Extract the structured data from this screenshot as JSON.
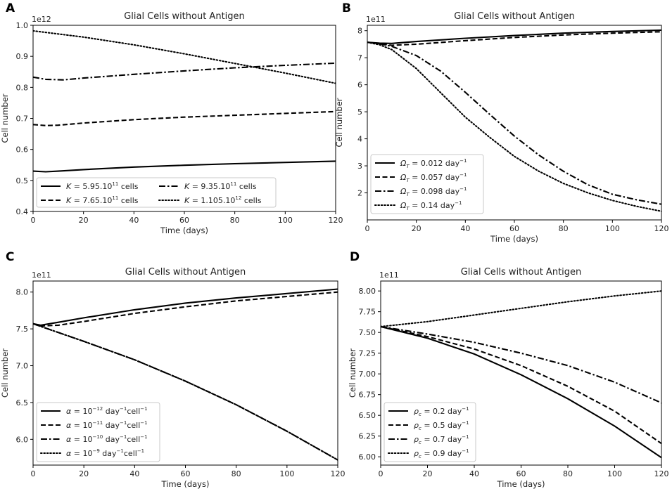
{
  "chart_data": [
    {
      "panel": "A",
      "type": "line",
      "title": "Glial Cells without Antigen",
      "xlabel": "Time (days)",
      "ylabel": "Cell number",
      "scale_label": "1e12",
      "xlim": [
        0,
        120
      ],
      "ylim": [
        0.4,
        1.0
      ],
      "xticks": [
        0,
        20,
        40,
        60,
        80,
        100,
        120
      ],
      "yticks": [
        0.4,
        0.5,
        0.6,
        0.7,
        0.8,
        0.9,
        1.0
      ],
      "ytick_labels": [
        "0.4",
        "0.5",
        "0.6",
        "0.7",
        "0.8",
        "0.9",
        "1.0"
      ],
      "legend_position": "bottom",
      "legend_columns": 2,
      "series": [
        {
          "name": "K = 5.95.10^11 cells",
          "legend": {
            "sym": "K",
            "eq": " = 5.95.10",
            "sup": "11",
            "tail": " cells"
          },
          "style": "solid",
          "x": [
            0,
            5,
            10,
            20,
            40,
            60,
            80,
            100,
            120
          ],
          "y": [
            0.53,
            0.528,
            0.53,
            0.535,
            0.543,
            0.549,
            0.554,
            0.558,
            0.562
          ]
        },
        {
          "name": "K = 7.65.10^11 cells",
          "legend": {
            "sym": "K",
            "eq": " = 7.65.10",
            "sup": "11",
            "tail": " cells"
          },
          "style": "dashed",
          "x": [
            0,
            5,
            10,
            20,
            40,
            60,
            80,
            100,
            120
          ],
          "y": [
            0.68,
            0.677,
            0.678,
            0.685,
            0.696,
            0.704,
            0.71,
            0.716,
            0.722
          ]
        },
        {
          "name": "K = 9.35.10^11 cells",
          "legend": {
            "sym": "K",
            "eq": " = 9.35.10",
            "sup": "11",
            "tail": " cells"
          },
          "style": "dashdot",
          "x": [
            0,
            5,
            12,
            20,
            40,
            60,
            80,
            100,
            120
          ],
          "y": [
            0.833,
            0.826,
            0.824,
            0.83,
            0.842,
            0.853,
            0.863,
            0.871,
            0.878
          ]
        },
        {
          "name": "K = 1.105.10^12 cells",
          "legend": {
            "sym": "K",
            "eq": " = 1.105.10",
            "sup": "12",
            "tail": " cells"
          },
          "style": "dotted",
          "x": [
            0,
            20,
            40,
            60,
            80,
            100,
            120
          ],
          "y": [
            0.982,
            0.962,
            0.937,
            0.908,
            0.877,
            0.846,
            0.813
          ]
        }
      ]
    },
    {
      "panel": "B",
      "type": "line",
      "title": "Glial Cells without Antigen",
      "xlabel": "Time (days)",
      "ylabel": "Cell number",
      "scale_label": "1e11",
      "xlim": [
        0,
        120
      ],
      "ylim": [
        1.0,
        8.2
      ],
      "xticks": [
        0,
        20,
        40,
        60,
        80,
        100,
        120
      ],
      "yticks": [
        2,
        3,
        4,
        5,
        6,
        7,
        8
      ],
      "ytick_labels": [
        "2",
        "3",
        "4",
        "5",
        "6",
        "7",
        "8"
      ],
      "legend_position": "lower-left",
      "legend_columns": 1,
      "series": [
        {
          "name": "Ω_T = 0.012 day^-1",
          "legend": {
            "sym": "Ω",
            "sub": "T",
            "eq": " = 0.012 day",
            "sup": "−1"
          },
          "style": "solid",
          "x": [
            0,
            5,
            10,
            20,
            40,
            60,
            80,
            100,
            120
          ],
          "y": [
            7.57,
            7.54,
            7.53,
            7.6,
            7.72,
            7.82,
            7.91,
            7.97,
            8.02
          ]
        },
        {
          "name": "Ω_T = 0.057 day^-1",
          "legend": {
            "sym": "Ω",
            "sub": "T",
            "eq": " = 0.057 day",
            "sup": "−1"
          },
          "style": "dashed",
          "x": [
            0,
            5,
            10,
            20,
            40,
            60,
            80,
            100,
            120
          ],
          "y": [
            7.57,
            7.52,
            7.46,
            7.5,
            7.63,
            7.75,
            7.84,
            7.91,
            7.96
          ]
        },
        {
          "name": "Ω_T = 0.098 day^-1",
          "legend": {
            "sym": "Ω",
            "sub": "T",
            "eq": " = 0.098 day",
            "sup": "−1"
          },
          "style": "dashdot",
          "x": [
            0,
            5,
            10,
            20,
            30,
            40,
            50,
            60,
            70,
            80,
            90,
            100,
            110,
            120
          ],
          "y": [
            7.57,
            7.52,
            7.42,
            7.08,
            6.5,
            5.72,
            4.9,
            4.1,
            3.4,
            2.8,
            2.3,
            1.95,
            1.74,
            1.58
          ]
        },
        {
          "name": "Ω_T = 0.14 day^-1",
          "legend": {
            "sym": "Ω",
            "sub": "T",
            "eq": " = 0.14 day",
            "sup": "−1"
          },
          "style": "dotted",
          "x": [
            0,
            5,
            10,
            20,
            30,
            40,
            50,
            60,
            70,
            80,
            90,
            100,
            110,
            120
          ],
          "y": [
            7.57,
            7.48,
            7.3,
            6.6,
            5.7,
            4.8,
            4.05,
            3.35,
            2.8,
            2.35,
            2.0,
            1.72,
            1.5,
            1.32
          ]
        }
      ]
    },
    {
      "panel": "C",
      "type": "line",
      "title": "Glial Cells without Antigen",
      "xlabel": "Time (days)",
      "ylabel": "Cell number",
      "scale_label": "1e11",
      "xlim": [
        0,
        120
      ],
      "ylim": [
        5.65,
        8.15
      ],
      "xticks": [
        0,
        20,
        40,
        60,
        80,
        100,
        120
      ],
      "yticks": [
        6.0,
        6.5,
        7.0,
        7.5,
        8.0
      ],
      "ytick_labels": [
        "6.0",
        "6.5",
        "7.0",
        "7.5",
        "8.0"
      ],
      "legend_position": "lower-left",
      "legend_columns": 1,
      "series": [
        {
          "name": "α = 10^-12 day^-1 cell^-1",
          "legend": {
            "sym": "α",
            "eq": " = 10",
            "sup": "−12",
            "tail": " day",
            "sup2": "−1",
            "tail2": "cell",
            "sup3": "−1"
          },
          "style": "solid",
          "x": [
            0,
            3,
            10,
            20,
            40,
            60,
            80,
            100,
            120
          ],
          "y": [
            7.57,
            7.55,
            7.59,
            7.65,
            7.76,
            7.85,
            7.92,
            7.98,
            8.04
          ]
        },
        {
          "name": "α = 10^-11 day^-1 cell^-1",
          "legend": {
            "sym": "α",
            "eq": " = 10",
            "sup": "−11",
            "tail": " day",
            "sup2": "−1",
            "tail2": "cell",
            "sup3": "−1"
          },
          "style": "dashed",
          "x": [
            0,
            3,
            10,
            20,
            40,
            60,
            80,
            100,
            120
          ],
          "y": [
            7.57,
            7.54,
            7.55,
            7.6,
            7.71,
            7.8,
            7.88,
            7.94,
            8.0
          ]
        },
        {
          "name": "α = 10^-10 day^-1 cell^-1",
          "legend": {
            "sym": "α",
            "eq": " = 10",
            "sup": "−10",
            "tail": " day",
            "sup2": "−1",
            "tail2": "cell",
            "sup3": "−1"
          },
          "style": "dashdot",
          "x": [
            0,
            20,
            40,
            60,
            80,
            100,
            120
          ],
          "y": [
            7.57,
            7.33,
            7.08,
            6.79,
            6.47,
            6.11,
            5.72
          ]
        },
        {
          "name": "α = 10^-9 day^-1 cell^-1",
          "legend": {
            "sym": "α",
            "eq": " = 10",
            "sup": "−9",
            "tail": " day",
            "sup2": "−1",
            "tail2": "cell",
            "sup3": "−1"
          },
          "style": "dotted",
          "x": [
            0,
            20,
            40,
            60,
            80,
            100,
            120
          ],
          "y": [
            7.57,
            7.33,
            7.08,
            6.79,
            6.47,
            6.11,
            5.72
          ]
        }
      ]
    },
    {
      "panel": "D",
      "type": "line",
      "title": "Glial Cells without Antigen",
      "xlabel": "Time (days)",
      "ylabel": "Cell number",
      "scale_label": "1e11",
      "xlim": [
        0,
        120
      ],
      "ylim": [
        5.9,
        8.12
      ],
      "xticks": [
        0,
        20,
        40,
        60,
        80,
        100,
        120
      ],
      "yticks": [
        6.0,
        6.25,
        6.5,
        6.75,
        7.0,
        7.25,
        7.5,
        7.75,
        8.0
      ],
      "ytick_labels": [
        "6.00",
        "6.25",
        "6.50",
        "6.75",
        "7.00",
        "7.25",
        "7.50",
        "7.75",
        "8.00"
      ],
      "legend_position": "lower-left",
      "legend_columns": 1,
      "series": [
        {
          "name": "ρ_c = 0.2 day^-1",
          "legend": {
            "sym": "ρ",
            "sub": "c",
            "eq": " = 0.2 day",
            "sup": "−1"
          },
          "style": "solid",
          "x": [
            0,
            20,
            40,
            60,
            80,
            100,
            120
          ],
          "y": [
            7.57,
            7.43,
            7.24,
            6.99,
            6.7,
            6.37,
            5.99
          ]
        },
        {
          "name": "ρ_c = 0.5 day^-1",
          "legend": {
            "sym": "ρ",
            "sub": "c",
            "eq": " = 0.5 day",
            "sup": "−1"
          },
          "style": "dashed",
          "x": [
            0,
            20,
            40,
            60,
            80,
            100,
            120
          ],
          "y": [
            7.57,
            7.45,
            7.3,
            7.1,
            6.85,
            6.55,
            6.16
          ]
        },
        {
          "name": "ρ_c = 0.7 day^-1",
          "legend": {
            "sym": "ρ",
            "sub": "c",
            "eq": " = 0.7 day",
            "sup": "−1"
          },
          "style": "dashdot",
          "x": [
            0,
            20,
            40,
            60,
            80,
            100,
            120
          ],
          "y": [
            7.57,
            7.48,
            7.38,
            7.25,
            7.1,
            6.9,
            6.65
          ]
        },
        {
          "name": "ρ_c = 0.9 day^-1",
          "legend": {
            "sym": "ρ",
            "sub": "c",
            "eq": " = 0.9 day",
            "sup": "−1"
          },
          "style": "dotted",
          "x": [
            0,
            20,
            40,
            60,
            80,
            100,
            120
          ],
          "y": [
            7.57,
            7.63,
            7.71,
            7.79,
            7.87,
            7.94,
            8.0
          ]
        }
      ]
    }
  ]
}
